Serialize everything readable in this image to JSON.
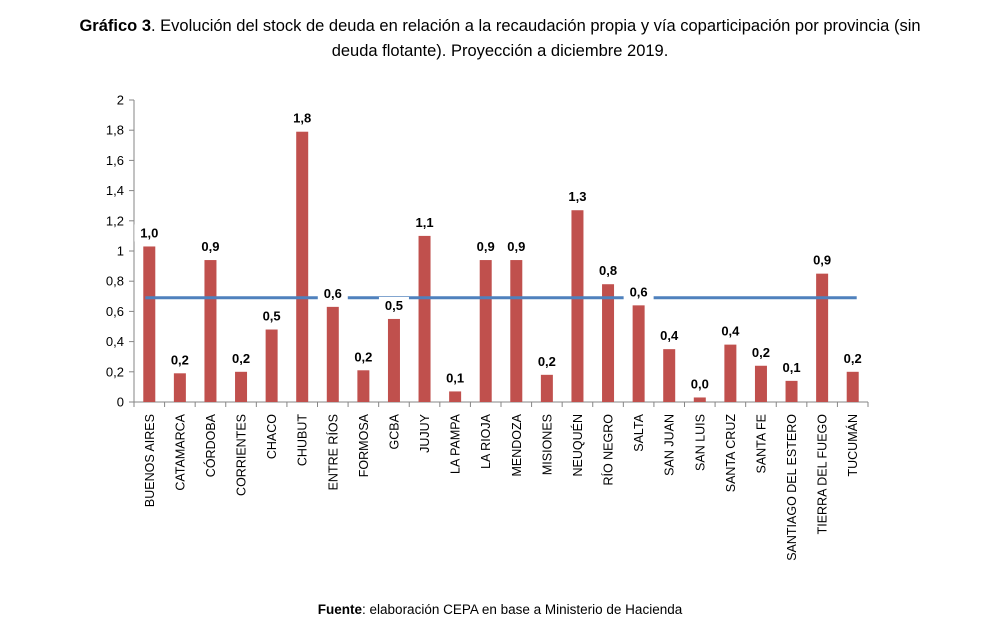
{
  "title": {
    "bold": "Gráfico 3",
    "text": ". Evolución del stock de deuda en relación a la recaudación propia y vía coparticipación por provincia (sin deuda flotante). Proyección a diciembre 2019."
  },
  "source": {
    "bold": "Fuente",
    "text": ": elaboración CEPA en base a Ministerio de Hacienda"
  },
  "chart_data": {
    "type": "bar",
    "title": "Gráfico 3. Evolución del stock de deuda en relación a la recaudación propia y vía coparticipación por provincia (sin deuda flotante). Proyección a diciembre 2019.",
    "xlabel": "",
    "ylabel": "",
    "ylim": [
      0,
      2
    ],
    "yticks": [
      "0",
      "0,2",
      "0,4",
      "0,6",
      "0,8",
      "1",
      "1,2",
      "1,4",
      "1,6",
      "1,8",
      "2"
    ],
    "categories": [
      "BUENOS AIRES",
      "CATAMARCA",
      "CÓRDOBA",
      "CORRIENTES",
      "CHACO",
      "CHUBUT",
      "ENTRE RÍOS",
      "FORMOSA",
      "GCBA",
      "JUJUY",
      "LA PAMPA",
      "LA RIOJA",
      "MENDOZA",
      "MISIONES",
      "NEUQUÉN",
      "RÍO NEGRO",
      "SALTA",
      "SAN JUAN",
      "SAN LUIS",
      "SANTA CRUZ",
      "SANTA FE",
      "SANTIAGO DEL ESTERO",
      "TIERRA DEL FUEGO",
      "TUCUMÁN"
    ],
    "values": [
      1.03,
      0.19,
      0.94,
      0.2,
      0.48,
      1.79,
      0.63,
      0.21,
      0.55,
      1.1,
      0.07,
      0.94,
      0.94,
      0.18,
      1.27,
      0.78,
      0.64,
      0.35,
      0.03,
      0.38,
      0.24,
      0.14,
      0.85,
      0.2
    ],
    "data_labels": [
      "1,0",
      "0,2",
      "0,9",
      "0,2",
      "0,5",
      "1,8",
      "0,6",
      "0,2",
      "0,5",
      "1,1",
      "0,1",
      "0,9",
      "0,9",
      "0,2",
      "1,3",
      "0,8",
      "0,6",
      "0,4",
      "0,0",
      "0,4",
      "0,2",
      "0,1",
      "0,9",
      "0,2"
    ],
    "reference_line": 0.69,
    "grid": false,
    "legend": "none",
    "colors": {
      "bar": "#C0504D",
      "line": "#4F81BD",
      "axis": "#868686"
    }
  }
}
